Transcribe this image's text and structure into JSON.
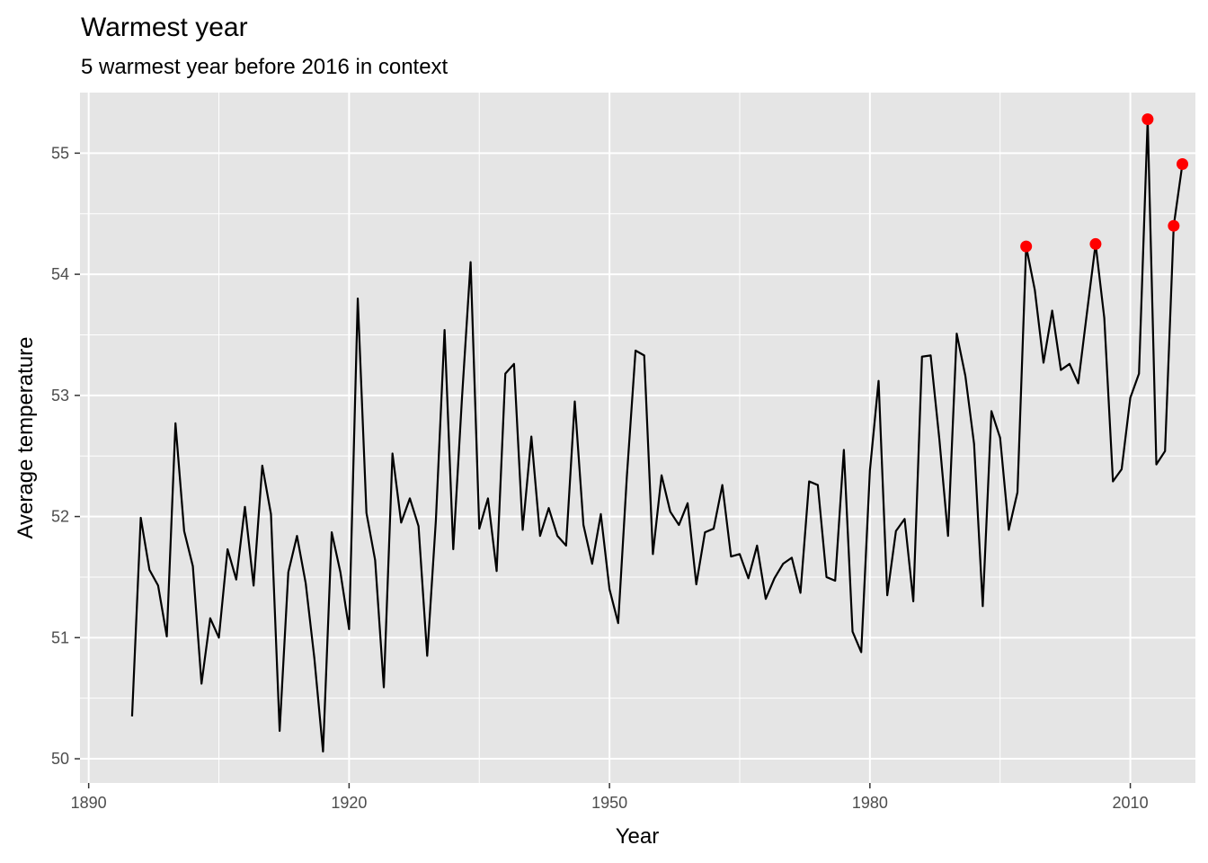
{
  "chart_data": {
    "type": "line",
    "title": "Warmest year",
    "subtitle": "5 warmest year before 2016 in context",
    "xlabel": "Year",
    "ylabel": "Average temperature",
    "xlim": [
      1889,
      2017.5
    ],
    "ylim": [
      49.8,
      55.5
    ],
    "x_ticks": [
      1890,
      1920,
      1950,
      1980,
      2010
    ],
    "x_tick_labels": [
      "1890",
      "1920",
      "1950",
      "1980",
      "2010"
    ],
    "y_ticks": [
      50,
      51,
      52,
      53,
      54,
      55
    ],
    "y_tick_labels": [
      "50",
      "51",
      "52",
      "53",
      "54",
      "55"
    ],
    "grid": true,
    "legend": "none",
    "colors": {
      "panel_background": "#e5e5e5",
      "grid": "#ffffff",
      "line": "#000000",
      "highlight": "#ff0000"
    },
    "series": [
      {
        "x": [
          1895,
          1896,
          1897,
          1898,
          1899,
          1900,
          1901,
          1902,
          1903,
          1904,
          1905,
          1906,
          1907,
          1908,
          1909,
          1910,
          1911,
          1912,
          1913,
          1914,
          1915,
          1916,
          1917,
          1918,
          1919,
          1920,
          1921,
          1922,
          1923,
          1924,
          1925,
          1926,
          1927,
          1928,
          1929,
          1930,
          1931,
          1932,
          1933,
          1934,
          1935,
          1936,
          1937,
          1938,
          1939,
          1940,
          1941,
          1942,
          1943,
          1944,
          1945,
          1946,
          1947,
          1948,
          1949,
          1950,
          1951,
          1952,
          1953,
          1954,
          1955,
          1956,
          1957,
          1958,
          1959,
          1960,
          1961,
          1962,
          1963,
          1964,
          1965,
          1966,
          1967,
          1968,
          1969,
          1970,
          1971,
          1972,
          1973,
          1974,
          1975,
          1976,
          1977,
          1978,
          1979,
          1980,
          1981,
          1982,
          1983,
          1984,
          1985,
          1986,
          1987,
          1988,
          1989,
          1990,
          1991,
          1992,
          1993,
          1994,
          1995,
          1996,
          1997,
          1998,
          1999,
          2000,
          2001,
          2002,
          2003,
          2004,
          2005,
          2006,
          2007,
          2008,
          2009,
          2010,
          2011,
          2012,
          2013,
          2014,
          2015,
          2016
        ],
        "values": [
          50.35,
          51.99,
          51.56,
          51.43,
          51.01,
          52.77,
          51.88,
          51.59,
          50.62,
          51.16,
          51.0,
          51.73,
          51.48,
          52.08,
          51.43,
          52.42,
          52.02,
          50.23,
          51.54,
          51.84,
          51.45,
          50.83,
          50.06,
          51.87,
          51.54,
          51.07,
          53.8,
          52.03,
          51.64,
          50.59,
          52.52,
          51.95,
          52.15,
          51.92,
          50.85,
          51.97,
          53.54,
          51.73,
          52.97,
          54.1,
          51.9,
          52.15,
          51.55,
          53.18,
          53.26,
          51.89,
          52.66,
          51.84,
          52.07,
          51.84,
          51.76,
          52.95,
          51.93,
          51.61,
          52.02,
          51.4,
          51.12,
          52.33,
          53.37,
          53.33,
          51.69,
          52.34,
          52.04,
          51.93,
          52.11,
          51.44,
          51.87,
          51.9,
          52.26,
          51.67,
          51.69,
          51.49,
          51.76,
          51.32,
          51.49,
          51.61,
          51.66,
          51.37,
          52.29,
          52.26,
          51.5,
          51.47,
          52.55,
          51.05,
          50.88,
          52.38,
          53.12,
          51.35,
          51.88,
          51.98,
          51.3,
          53.32,
          53.33,
          52.64,
          51.84,
          53.51,
          53.16,
          52.6,
          51.26,
          52.87,
          52.65,
          51.89,
          52.2,
          54.23,
          53.87,
          53.27,
          53.7,
          53.21,
          53.26,
          53.1,
          53.68,
          54.25,
          53.64,
          52.29,
          52.39,
          52.98,
          53.18,
          55.28,
          52.43,
          52.54,
          54.4,
          54.91
        ]
      }
    ],
    "highlighted_points": {
      "x": [
        1998,
        2006,
        2012,
        2015,
        2016
      ],
      "values": [
        54.23,
        54.25,
        55.28,
        54.4,
        54.91
      ]
    }
  }
}
